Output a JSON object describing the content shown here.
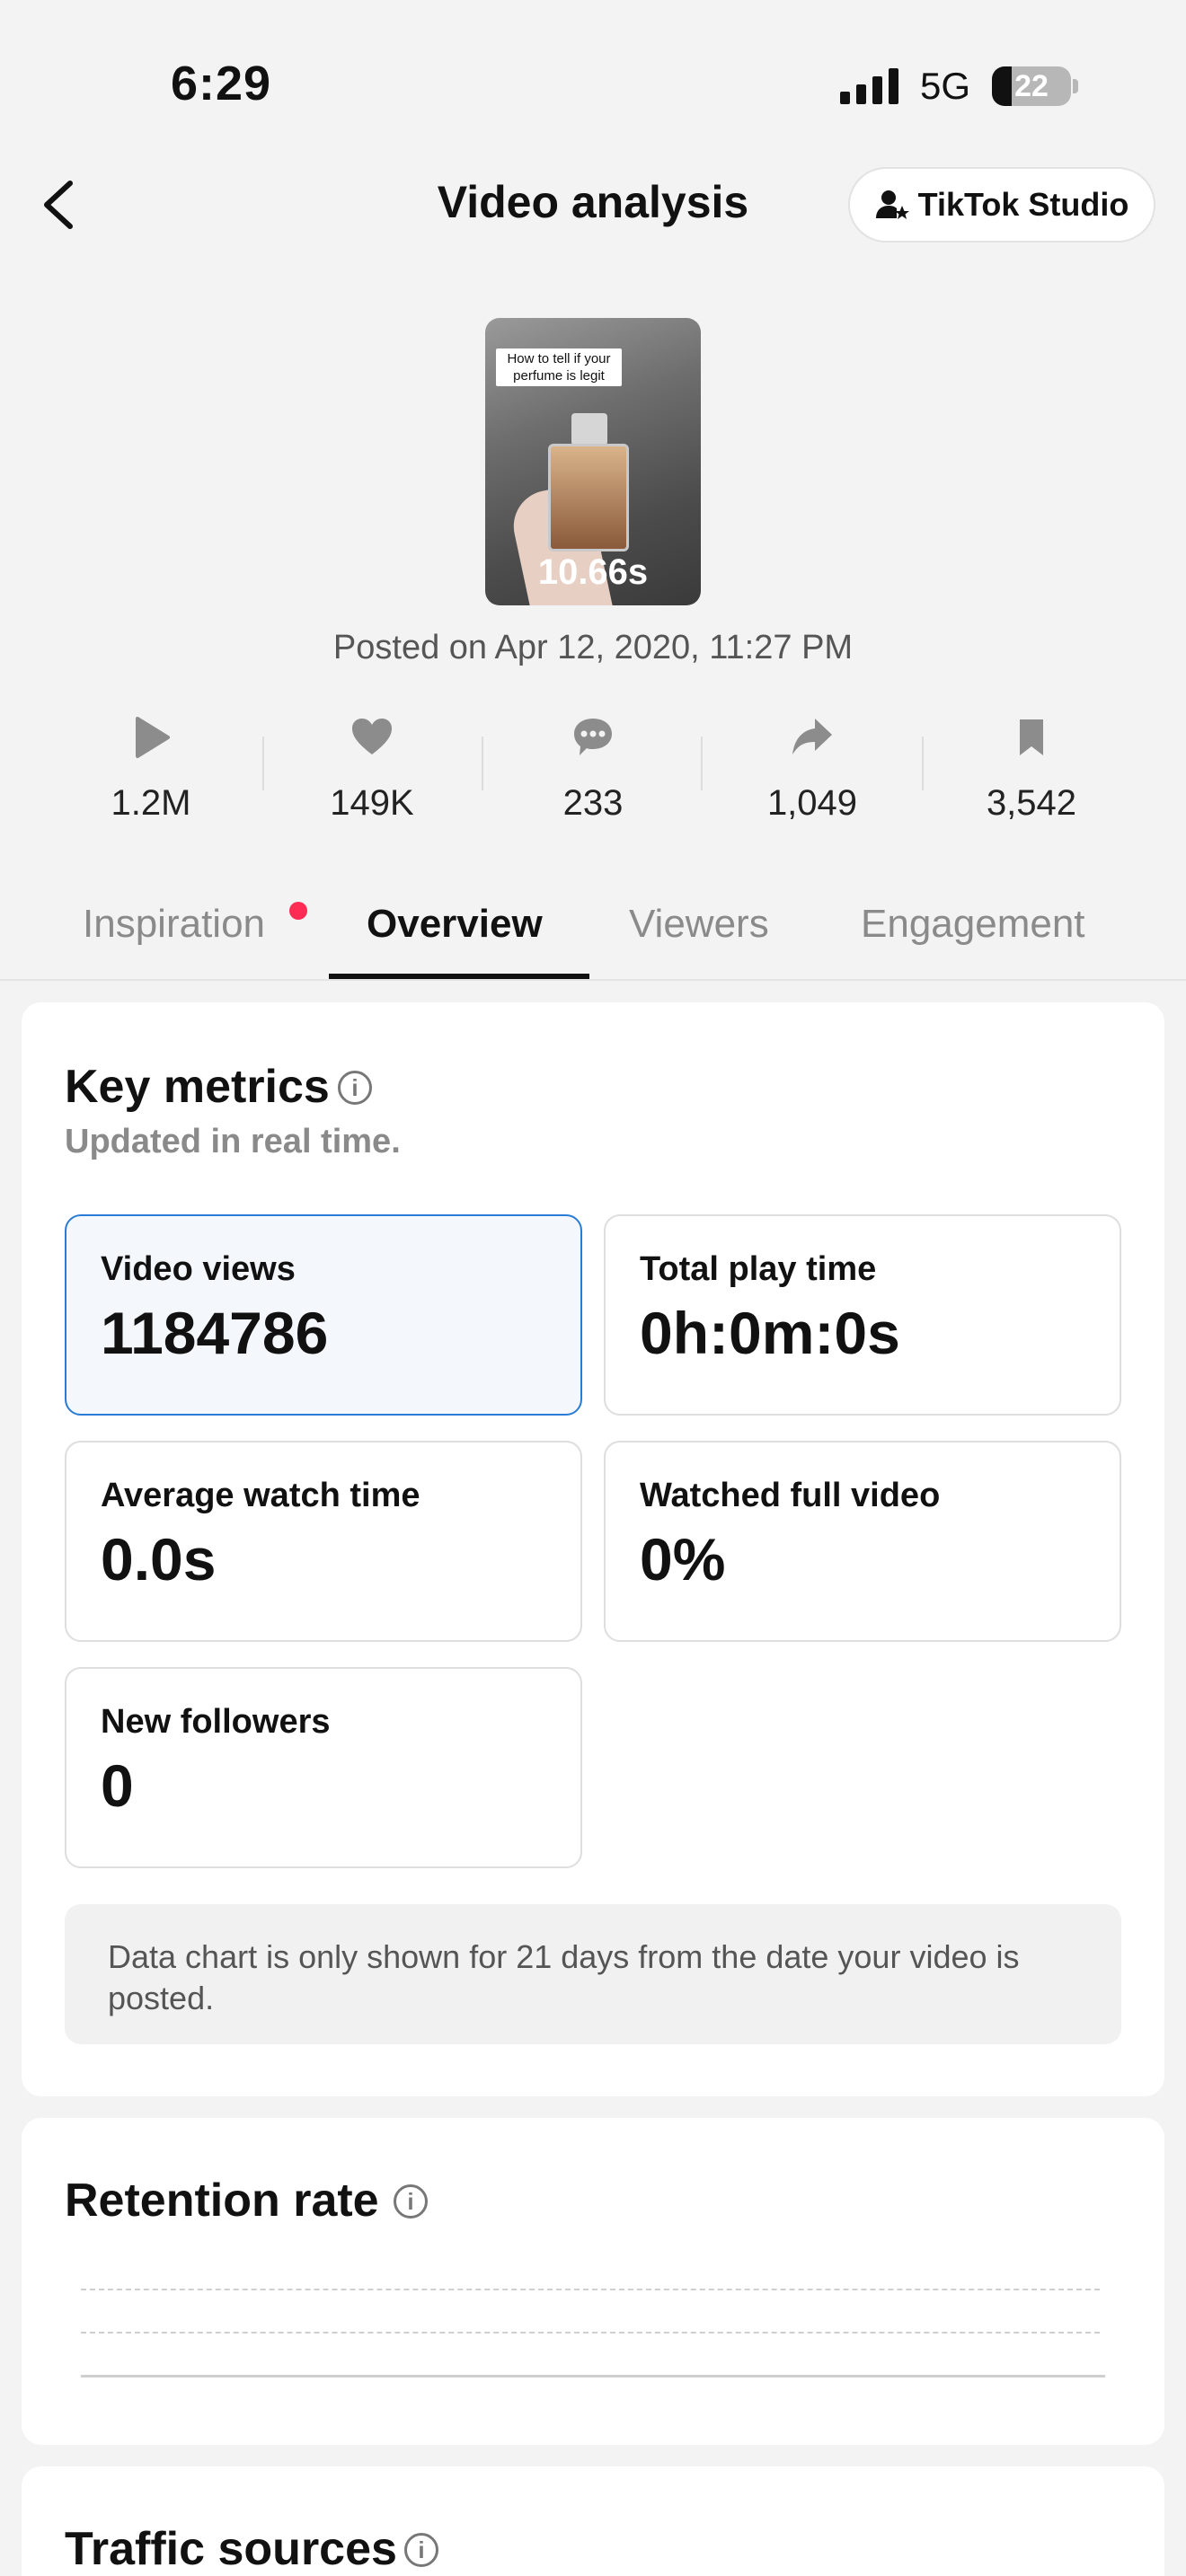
{
  "status_bar": {
    "time": "6:29",
    "network": "5G",
    "battery": "22"
  },
  "header": {
    "title": "Video analysis",
    "studio_button": "TikTok Studio"
  },
  "video": {
    "caption": "How to tell if your perfume is legit",
    "duration": "10.66s",
    "posted": "Posted on Apr 12, 2020, 11:27 PM"
  },
  "stats": [
    {
      "icon": "play-icon",
      "value": "1.2M"
    },
    {
      "icon": "heart-icon",
      "value": "149K"
    },
    {
      "icon": "comment-icon",
      "value": "233"
    },
    {
      "icon": "share-icon",
      "value": "1,049"
    },
    {
      "icon": "bookmark-icon",
      "value": "3,542"
    }
  ],
  "tabs": [
    "Inspiration",
    "Overview",
    "Viewers",
    "Engagement"
  ],
  "key_metrics": {
    "title": "Key metrics",
    "subtitle": "Updated in real time.",
    "items": [
      {
        "label": "Video views",
        "value": "1184786"
      },
      {
        "label": "Total play time",
        "value": "0h:0m:0s"
      },
      {
        "label": "Average watch time",
        "value": "0.0s"
      },
      {
        "label": "Watched full video",
        "value": "0%"
      },
      {
        "label": "New followers",
        "value": "0"
      }
    ],
    "notice": "Data chart is only shown for 21 days from the date your video is posted."
  },
  "retention": {
    "title": "Retention rate"
  },
  "traffic": {
    "title": "Traffic sources"
  },
  "colors": {
    "accent_red": "#fe2c55",
    "selected_border": "#2a7bd5"
  }
}
